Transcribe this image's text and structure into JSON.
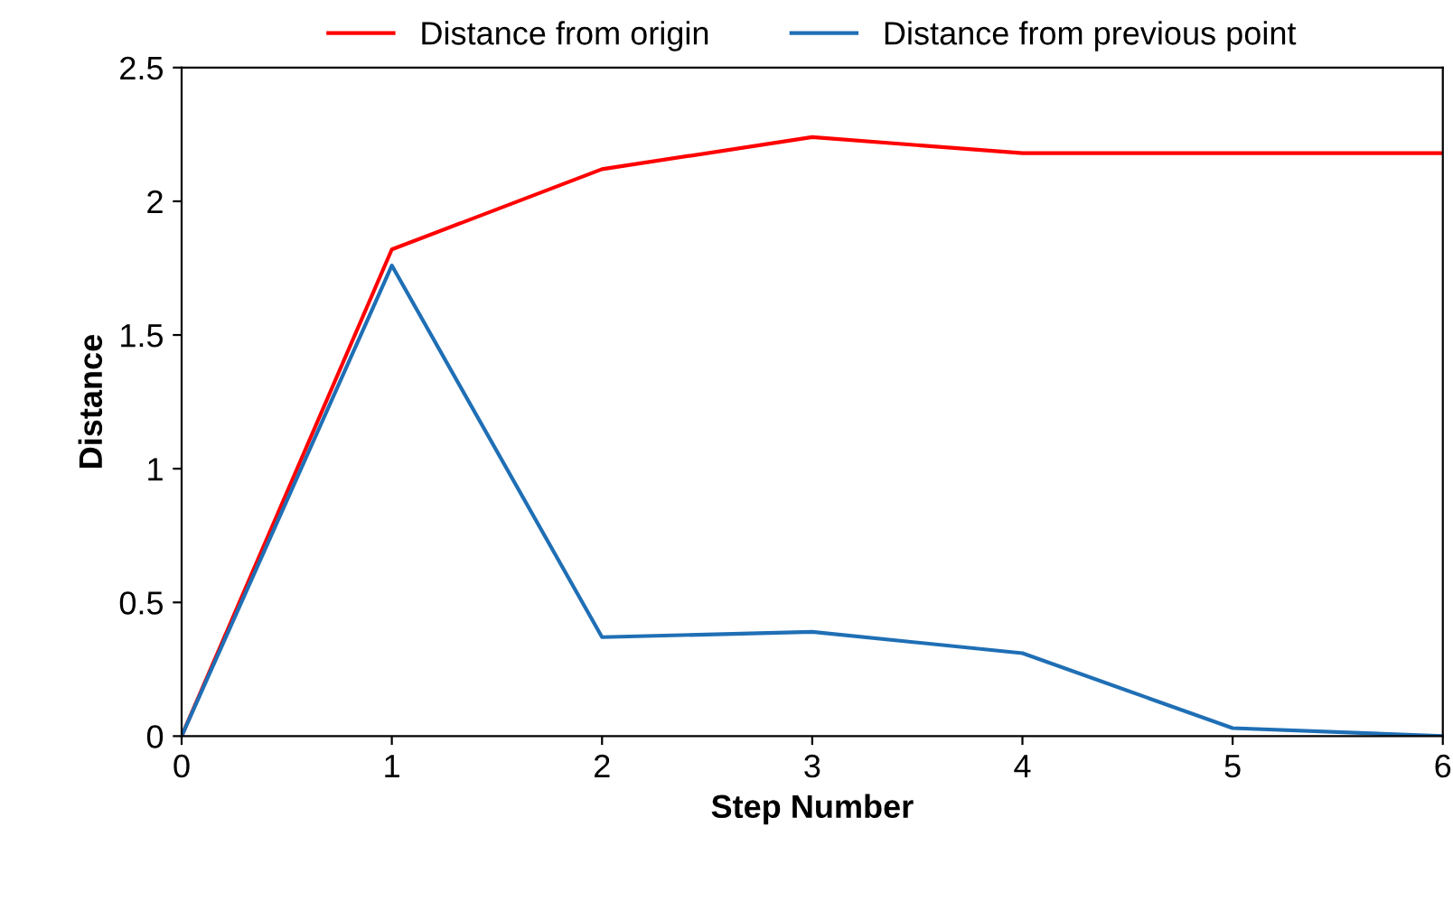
{
  "chart_data": {
    "type": "line",
    "xlabel": "Step Number",
    "ylabel": "Distance",
    "x": [
      0,
      1,
      2,
      3,
      4,
      5,
      6
    ],
    "series": [
      {
        "name": "Distance from origin",
        "color": "#ff0000",
        "values": [
          0,
          1.82,
          2.12,
          2.24,
          2.18,
          2.18,
          2.18
        ]
      },
      {
        "name": "Distance from previous point",
        "color": "#1f6fb5",
        "values": [
          0,
          1.76,
          0.37,
          0.39,
          0.31,
          0.03,
          0.0
        ]
      }
    ],
    "xlim": [
      0,
      6
    ],
    "xticks": [
      0,
      1,
      2,
      3,
      4,
      5,
      6
    ],
    "ylim": [
      0,
      2.5
    ],
    "yticks": [
      0,
      0.5,
      1,
      1.5,
      2,
      2.5
    ],
    "grid": false,
    "legend": "top",
    "marker": "none",
    "line_style": "solid"
  }
}
